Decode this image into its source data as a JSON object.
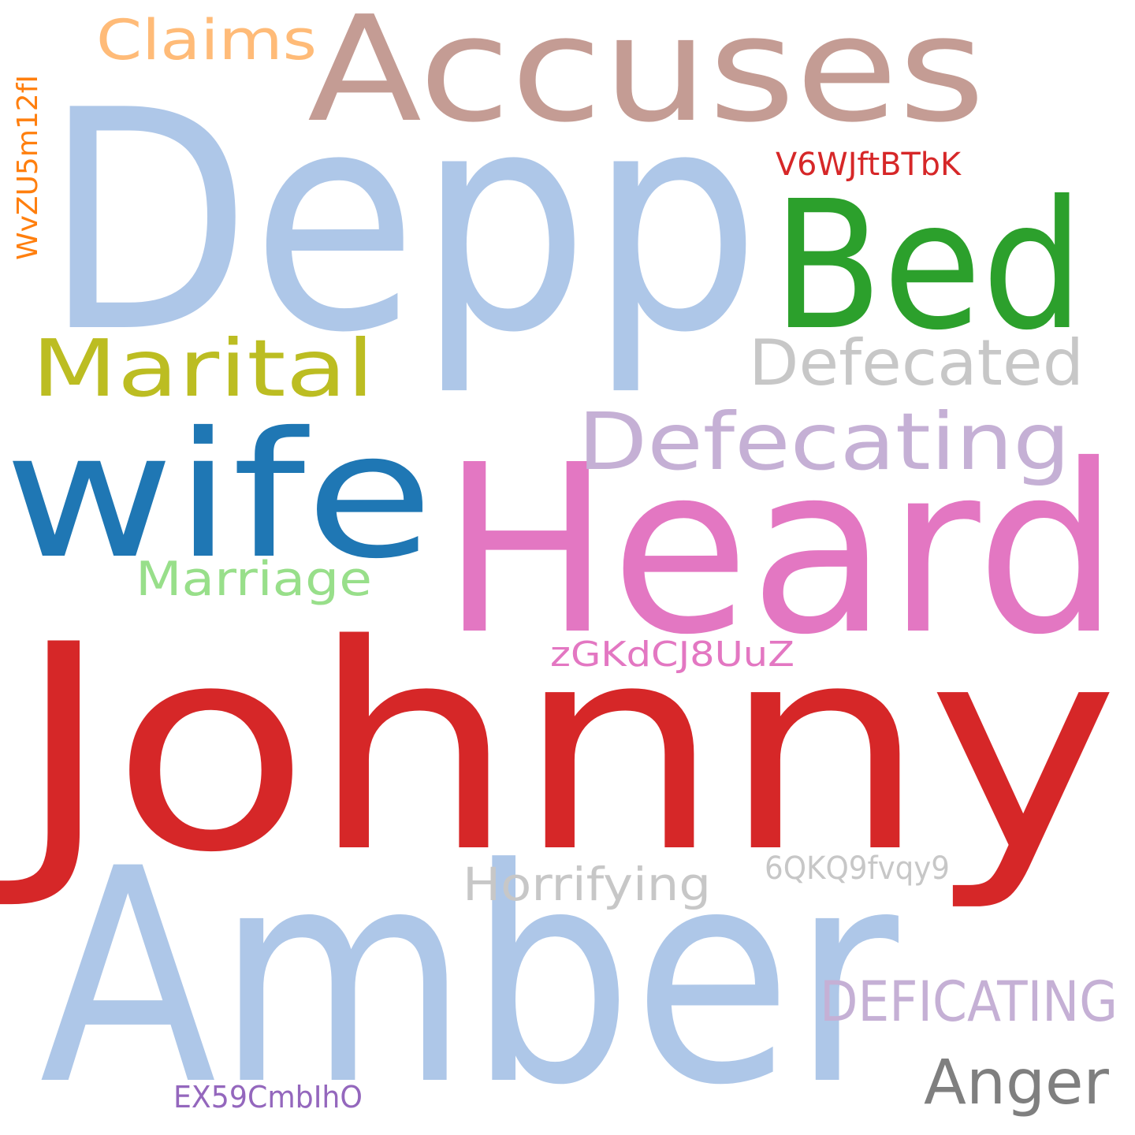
{
  "words": [
    {
      "text": "Johnny",
      "color": "#d62728"
    },
    {
      "text": "Depp",
      "color": "#aec7e8"
    },
    {
      "text": "Amber",
      "color": "#aec7e8"
    },
    {
      "text": "Heard",
      "color": "#e377c2"
    },
    {
      "text": "Accuses",
      "color": "#c49c94"
    },
    {
      "text": "Bed",
      "color": "#2ca02c"
    },
    {
      "text": "wife",
      "color": "#1f77b4"
    },
    {
      "text": "Marital",
      "color": "#bcbd22"
    },
    {
      "text": "Defecating",
      "color": "#c5b0d5"
    },
    {
      "text": "Defecated",
      "color": "#c7c7c7"
    },
    {
      "text": "Claims",
      "color": "#ffbb78"
    },
    {
      "text": "Marriage",
      "color": "#98df8a"
    },
    {
      "text": "Horrifying",
      "color": "#c7c7c7"
    },
    {
      "text": "DEFICATING",
      "color": "#c5b0d5"
    },
    {
      "text": "Anger",
      "color": "#7f7f7f"
    },
    {
      "text": "zGKdCJ8UuZ",
      "color": "#e377c2"
    },
    {
      "text": "V6WJftBTbK",
      "color": "#d62728"
    },
    {
      "text": "6QKQ9fvqy9",
      "color": "#c7c7c7"
    },
    {
      "text": "EX59CmbIhO",
      "color": "#9467bd"
    },
    {
      "text": "WvZU5m12fI",
      "color": "#ff7f0e"
    }
  ]
}
